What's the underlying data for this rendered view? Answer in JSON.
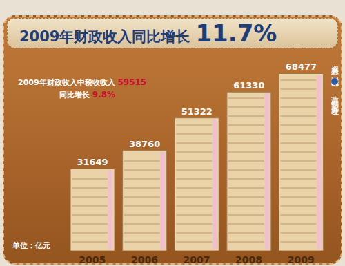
{
  "chart_data": {
    "type": "bar",
    "title": "2009年财政收入同比增长 11.7%",
    "categories": [
      "2005",
      "2006",
      "2007",
      "2008",
      "2009"
    ],
    "values": [
      31649,
      38760,
      51322,
      61330,
      68477
    ],
    "color": "#ead3a8",
    "ylim": [
      0,
      75000
    ],
    "data_labels": true,
    "tick_labels": "x",
    "grid": false,
    "annotations": [
      "2009年财政收入中税收收入 59515",
      "同比增长 9.8%",
      "单位：亿元",
      "资料来源：国家统计局",
      "卢哲 编制",
      "新华社发"
    ]
  }
}
